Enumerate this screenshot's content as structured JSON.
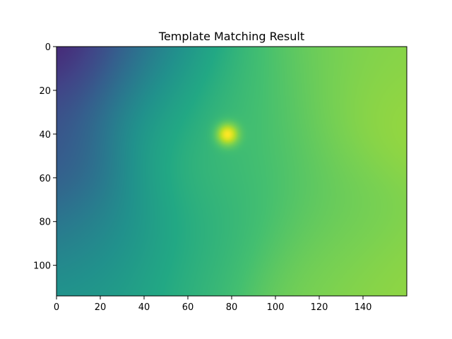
{
  "chart_data": {
    "type": "heatmap",
    "title": "Template Matching Result",
    "xlabel": "",
    "ylabel": "",
    "xlim": [
      0,
      160
    ],
    "ylim": [
      114,
      0
    ],
    "x_ticks": [
      0,
      20,
      40,
      60,
      80,
      100,
      120,
      140
    ],
    "y_ticks": [
      0,
      20,
      40,
      60,
      80,
      100
    ],
    "colormap": "viridis",
    "value_range": [
      0,
      1
    ],
    "grid": false,
    "legend": "none",
    "peak": {
      "x": 78,
      "y": 40,
      "value": 1.0
    },
    "field": [
      {
        "x": 0,
        "y": 0,
        "value": 0.0,
        "spread": 16
      },
      {
        "x": 12,
        "y": 0,
        "value": 0.05,
        "spread": 18
      },
      {
        "x": 0,
        "y": 20,
        "value": 0.25,
        "spread": 16
      },
      {
        "x": 5,
        "y": 45,
        "value": 0.2,
        "spread": 18
      },
      {
        "x": 3,
        "y": 60,
        "value": 0.28,
        "spread": 18
      },
      {
        "x": 10,
        "y": 85,
        "value": 0.4,
        "spread": 18
      },
      {
        "x": 28,
        "y": 5,
        "value": 0.3,
        "spread": 20
      },
      {
        "x": 40,
        "y": 10,
        "value": 0.45,
        "spread": 20
      },
      {
        "x": 35,
        "y": 40,
        "value": 0.5,
        "spread": 20
      },
      {
        "x": 30,
        "y": 80,
        "value": 0.5,
        "spread": 20
      },
      {
        "x": 20,
        "y": 110,
        "value": 0.55,
        "spread": 22
      },
      {
        "x": 60,
        "y": 20,
        "value": 0.62,
        "spread": 22
      },
      {
        "x": 60,
        "y": 45,
        "value": 0.72,
        "spread": 22
      },
      {
        "x": 75,
        "y": 75,
        "value": 0.6,
        "spread": 22
      },
      {
        "x": 60,
        "y": 105,
        "value": 0.65,
        "spread": 22
      },
      {
        "x": 95,
        "y": 25,
        "value": 0.7,
        "spread": 22
      },
      {
        "x": 100,
        "y": 60,
        "value": 0.72,
        "spread": 22
      },
      {
        "x": 110,
        "y": 105,
        "value": 0.8,
        "spread": 24
      },
      {
        "x": 130,
        "y": 15,
        "value": 0.78,
        "spread": 22
      },
      {
        "x": 145,
        "y": 35,
        "value": 0.88,
        "spread": 22
      },
      {
        "x": 130,
        "y": 70,
        "value": 0.75,
        "spread": 22
      },
      {
        "x": 150,
        "y": 100,
        "value": 0.84,
        "spread": 24
      },
      {
        "x": 158,
        "y": 5,
        "value": 0.82,
        "spread": 22
      }
    ]
  }
}
